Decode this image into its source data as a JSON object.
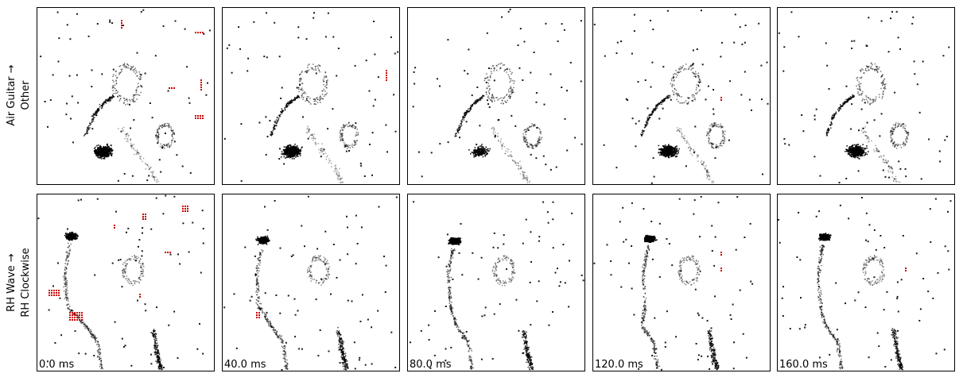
{
  "rows": [
    {
      "label_line1": "Air Guitar →",
      "label_line2": "Other"
    },
    {
      "label_line1": "RH Wave →",
      "label_line2": "RH Clockwise"
    }
  ],
  "timestamps": [
    "0.0 ms",
    "40.0 ms",
    "80.0 ms",
    "120.0 ms",
    "160.0 ms"
  ],
  "colors": {
    "event": "#000000",
    "attribution": "#cc0000",
    "border": "#000000"
  }
}
